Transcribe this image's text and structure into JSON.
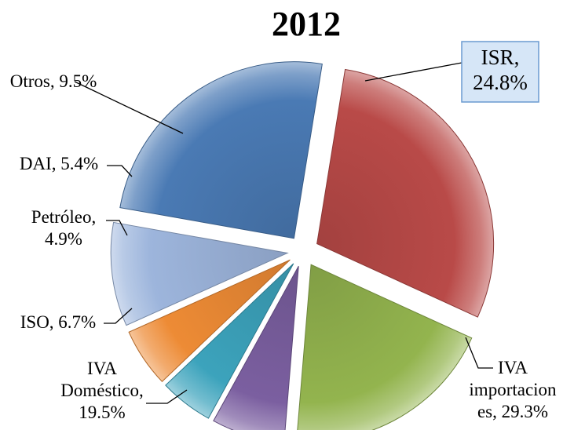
{
  "chart_data": {
    "type": "pie",
    "title": "2012",
    "exploded": true,
    "slices": [
      {
        "label": "ISR",
        "value": 24.8,
        "value_text": "24.8%",
        "color": "#4A7AB4"
      },
      {
        "label": "IVA importaciones",
        "value": 29.3,
        "value_text": "29.3%",
        "color": "#B94A48"
      },
      {
        "label": "IVA Doméstico",
        "value": 19.5,
        "value_text": "19.5%",
        "color": "#93B44E"
      },
      {
        "label": "ISO",
        "value": 6.7,
        "value_text": "6.7%",
        "color": "#7B5FA0"
      },
      {
        "label": "Petróleo",
        "value": 4.9,
        "value_text": "4.9%",
        "color": "#3CA3BC"
      },
      {
        "label": "DAI",
        "value": 5.4,
        "value_text": "5.4%",
        "color": "#ED8B35"
      },
      {
        "label": "Otros",
        "value": 9.5,
        "value_text": "9.5%",
        "color": "#9DB5DC"
      }
    ],
    "data_labels": [
      {
        "lines": [
          "ISR,",
          "24.8%"
        ],
        "boxed": true
      },
      {
        "lines": [
          "IVA",
          "importacion",
          "es, 29.3%"
        ]
      },
      {
        "lines": [
          "IVA",
          "Doméstico,",
          "19.5%"
        ]
      },
      {
        "lines": [
          "ISO, 6.7%"
        ]
      },
      {
        "lines": [
          "Petróleo,",
          "4.9%"
        ]
      },
      {
        "lines": [
          "DAI, 5.4%"
        ]
      },
      {
        "lines": [
          "Otros, 9.5%"
        ]
      }
    ],
    "label_box_fill": "#D6E6F7",
    "label_box_border": "#6A9AD0"
  }
}
